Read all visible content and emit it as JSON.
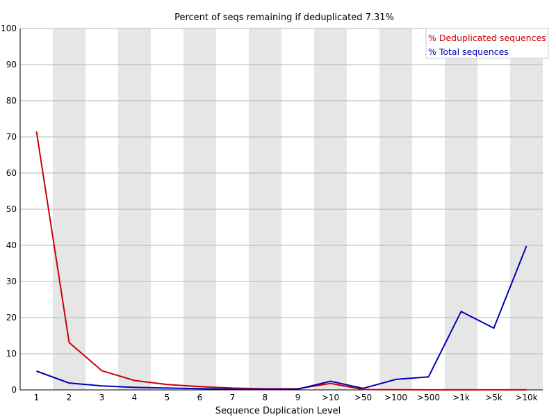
{
  "chart_data": {
    "type": "line",
    "title": "Percent of seqs remaining if deduplicated 7.31%",
    "xlabel": "Sequence Duplication Level",
    "ylabel": "",
    "ylim": [
      0,
      100
    ],
    "yticks": [
      0,
      10,
      20,
      30,
      40,
      50,
      60,
      70,
      80,
      90,
      100
    ],
    "categories": [
      "1",
      "2",
      "3",
      "4",
      "5",
      "6",
      "7",
      "8",
      "9",
      ">10",
      ">50",
      ">100",
      ">500",
      ">1k",
      ">5k",
      ">10k"
    ],
    "grid": true,
    "alternating_column_shading": true,
    "legend_position": "top-right",
    "series": [
      {
        "name": "% Deduplicated sequences",
        "color": "#cc0000",
        "values": [
          71.5,
          13.1,
          5.3,
          2.6,
          1.5,
          0.9,
          0.5,
          0.3,
          0.3,
          1.8,
          0.1,
          0.05,
          0.02,
          0.01,
          0.01,
          0.01
        ]
      },
      {
        "name": "% Total sequences",
        "color": "#0000bb",
        "values": [
          5.2,
          1.9,
          1.1,
          0.7,
          0.5,
          0.35,
          0.2,
          0.15,
          0.2,
          2.4,
          0.4,
          2.9,
          3.6,
          21.7,
          17.1,
          39.8
        ]
      }
    ]
  }
}
